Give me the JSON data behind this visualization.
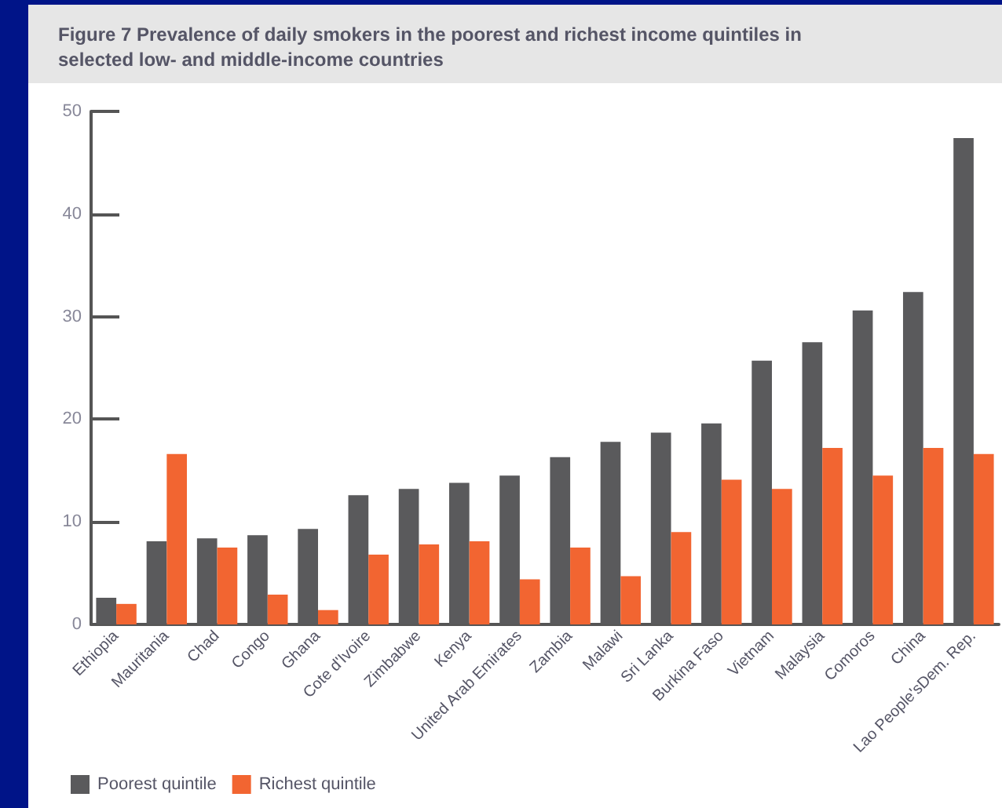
{
  "chart_data": {
    "type": "bar",
    "title": "Figure 7 Prevalence of daily smokers in the poorest and richest income quintiles in selected low- and middle-income countries",
    "categories": [
      "Ethiopia",
      "Mauritania",
      "Chad",
      "Congo",
      "Ghana",
      "Cote d'Ivoire",
      "Zimbabwe",
      "Kenya",
      "United Arab Emirates",
      "Zambia",
      "Malawi",
      "Sri Lanka",
      "Burkina Faso",
      "Vietnam",
      "Malaysia",
      "Comoros",
      "China",
      "Lao People'sDem. Rep."
    ],
    "series": [
      {
        "name": "Poorest quintile",
        "color": "#5a5a5c",
        "values": [
          2.6,
          8.1,
          8.4,
          8.7,
          9.3,
          12.6,
          13.2,
          13.8,
          14.5,
          16.3,
          17.8,
          18.7,
          19.6,
          25.7,
          27.5,
          30.6,
          32.4,
          47.4
        ]
      },
      {
        "name": "Richest quintile",
        "color": "#f26531",
        "values": [
          2.0,
          16.6,
          7.5,
          2.9,
          1.4,
          6.8,
          7.8,
          8.1,
          4.4,
          7.5,
          4.7,
          9.0,
          14.1,
          13.2,
          17.2,
          14.5,
          17.2,
          16.6
        ]
      }
    ],
    "ylim": [
      0,
      50
    ],
    "yticks": [
      0,
      10,
      20,
      30,
      40,
      50
    ],
    "grid": false,
    "legend": "bottom left"
  }
}
